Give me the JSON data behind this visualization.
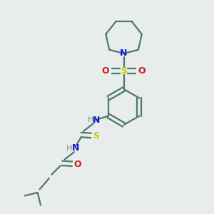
{
  "bg_color": "#e8ecec",
  "bond_color": "#4a7a6a",
  "n_color": "#1a1acc",
  "o_color": "#cc1a1a",
  "s_color": "#cccc00",
  "h_color": "#6a9a8a",
  "line_width": 1.6,
  "fig_size": [
    3.0,
    3.0
  ],
  "dpi": 100,
  "xlim": [
    0,
    10
  ],
  "ylim": [
    0,
    10
  ]
}
